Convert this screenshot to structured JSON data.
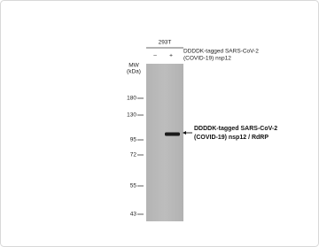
{
  "header": {
    "cell_line": "293T",
    "lanes": [
      "–",
      "+"
    ],
    "treatment": [
      "DDDDK-tagged SARS-CoV-2",
      "(COVID-19) nsp12"
    ]
  },
  "marker_header": [
    "MW",
    "(kDa)"
  ],
  "markers": [
    "180",
    "130",
    "95",
    "72",
    "55",
    "43"
  ],
  "band_label": [
    "DDDDK-tagged  SARS-CoV-2",
    "(COVID-19)  nsp12 / RdRP"
  ]
}
